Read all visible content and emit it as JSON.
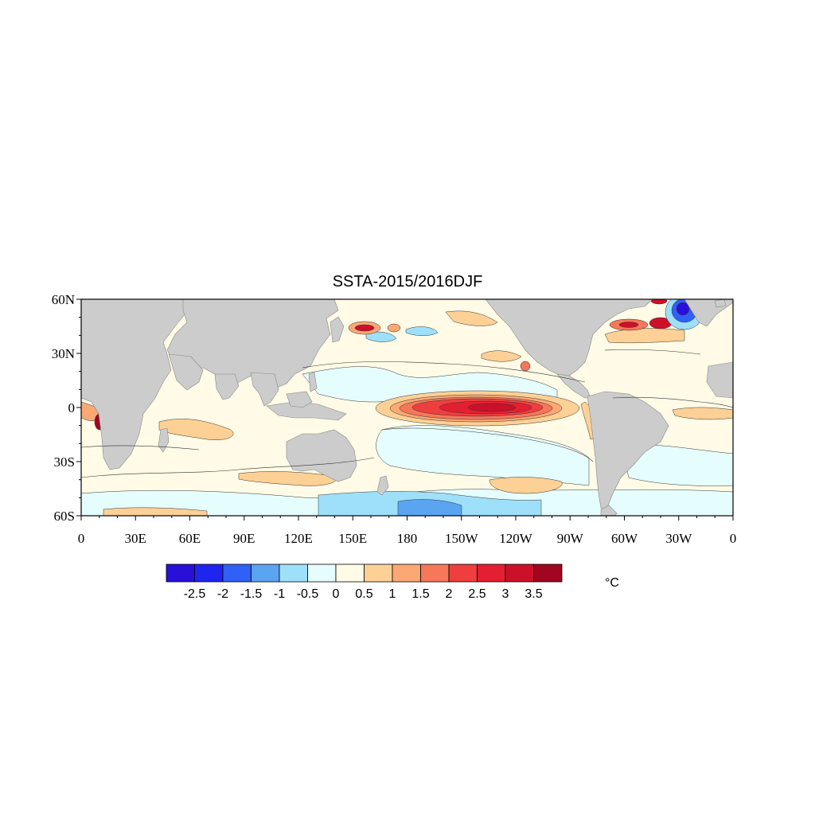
{
  "title": "SSTA-2015/2016DJF",
  "units": "°C",
  "map": {
    "projection": "cylindrical-equidistant",
    "lon_range": [
      0,
      360
    ],
    "lat_range": [
      -60,
      60
    ],
    "land_color": "#cccccc",
    "ocean_background": "#fffbe6",
    "lat_ticks": [
      {
        "value": 60,
        "label": "60N"
      },
      {
        "value": 30,
        "label": "30N"
      },
      {
        "value": 0,
        "label": "0"
      },
      {
        "value": -30,
        "label": "30S"
      },
      {
        "value": -60,
        "label": "60S"
      }
    ],
    "lon_ticks": [
      {
        "value": 0,
        "label": "0"
      },
      {
        "value": 30,
        "label": "30E"
      },
      {
        "value": 60,
        "label": "60E"
      },
      {
        "value": 90,
        "label": "90E"
      },
      {
        "value": 120,
        "label": "120E"
      },
      {
        "value": 150,
        "label": "150E"
      },
      {
        "value": 180,
        "label": "180"
      },
      {
        "value": 210,
        "label": "150W"
      },
      {
        "value": 240,
        "label": "120W"
      },
      {
        "value": 270,
        "label": "90W"
      },
      {
        "value": 300,
        "label": "60W"
      },
      {
        "value": 330,
        "label": "30W"
      },
      {
        "value": 360,
        "label": "0"
      }
    ]
  },
  "colorbar": {
    "labels": [
      "-2.5",
      "-2",
      "-1.5",
      "-1",
      "-0.5",
      "0",
      "0.5",
      "1",
      "1.5",
      "2",
      "2.5",
      "3",
      "3.5"
    ],
    "colors": [
      "#2a0fd9",
      "#1f25ef",
      "#3060f5",
      "#5aa4f2",
      "#9ee0fa",
      "#e6fdfd",
      "#fffbe6",
      "#fdd095",
      "#fba874",
      "#f6775a",
      "#ef3e3f",
      "#e41f31",
      "#cd1029",
      "#a0061f"
    ]
  },
  "anomalies": [
    {
      "name": "nino-core",
      "lon": 218,
      "lat": 0,
      "rx": 48,
      "ry": 7,
      "level": 2
    },
    {
      "name": "nino-max",
      "lon": 225,
      "lat": 0,
      "rx": 28,
      "ry": 4,
      "level": 3
    },
    {
      "name": "kuroshio-warm",
      "lon": 155,
      "lat": 42,
      "rx": 8,
      "ry": 4,
      "level": 2.5
    },
    {
      "name": "gulf-stream-warm",
      "lon": 315,
      "lat": 45,
      "rx": 6,
      "ry": 3,
      "level": 2.5
    },
    {
      "name": "north-atlantic-cold",
      "lon": 333,
      "lat": 52,
      "rx": 6,
      "ry": 7,
      "level": -2.5
    },
    {
      "name": "south-pacific-warm",
      "lon": 250,
      "lat": -43,
      "rx": 15,
      "ry": 4,
      "level": 1
    }
  ]
}
